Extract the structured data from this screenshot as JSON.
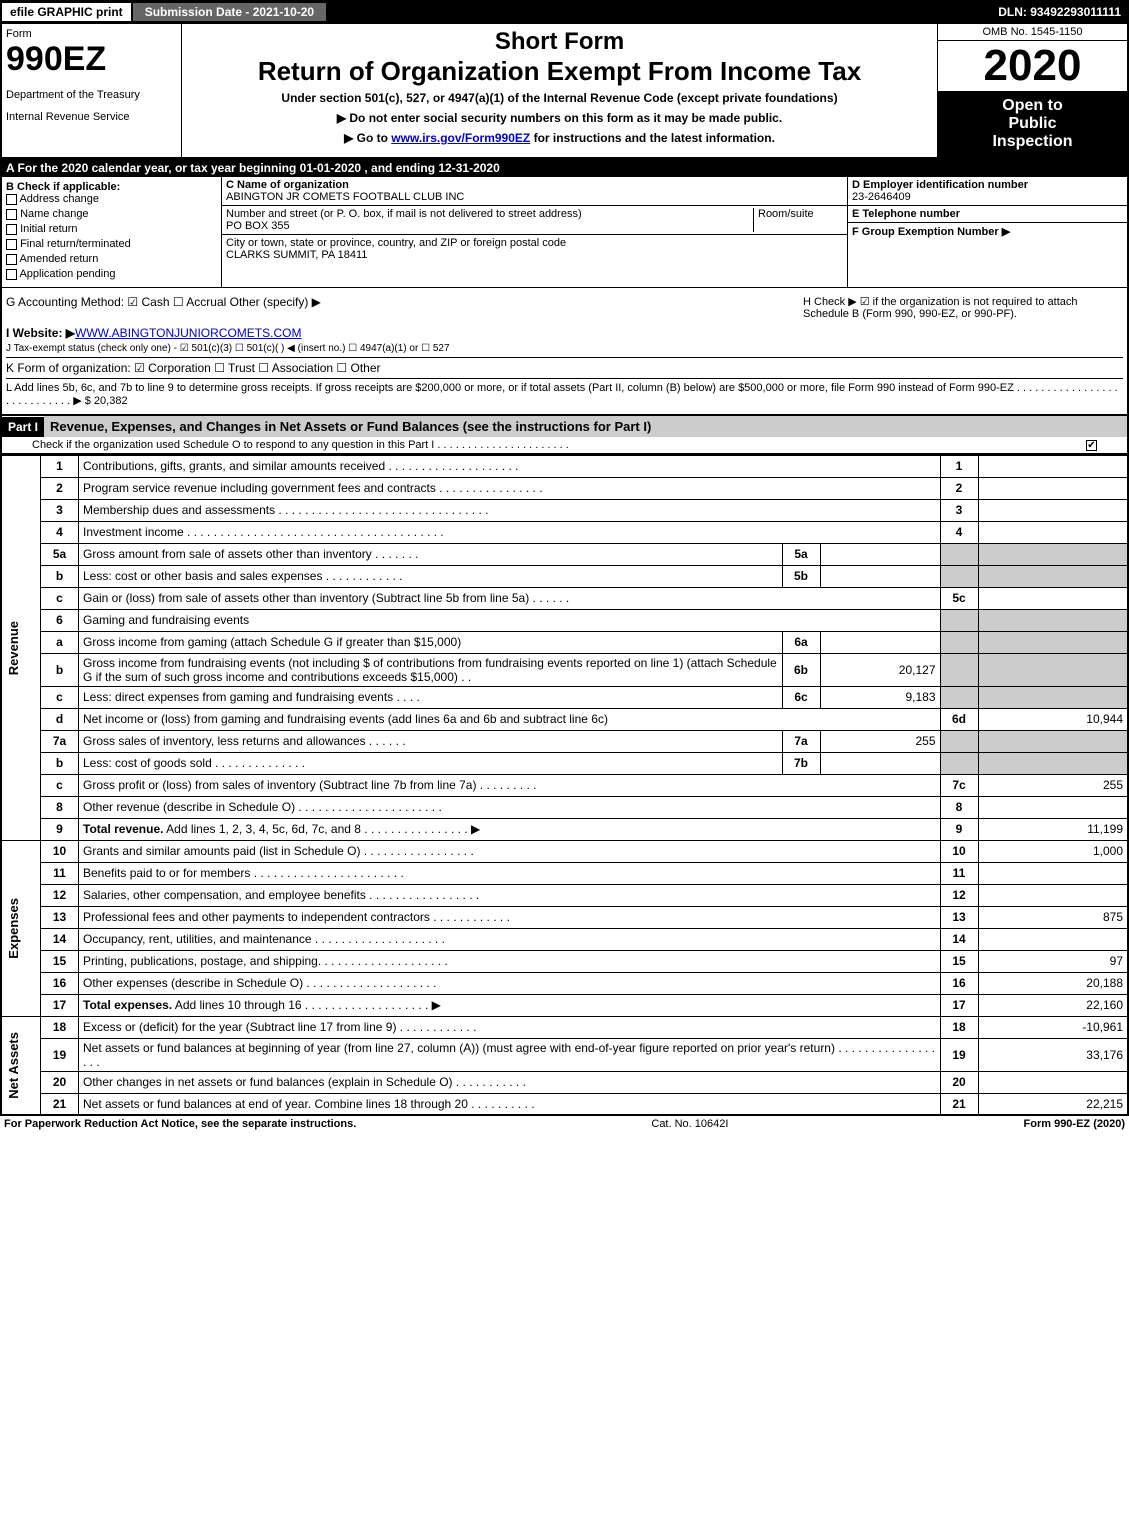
{
  "topbar": {
    "efile": "efile GRAPHIC print",
    "submission": "Submission Date - 2021-10-20",
    "dln": "DLN: 93492293011111"
  },
  "header": {
    "form_label": "Form",
    "form_num": "990EZ",
    "dept1": "Department of the Treasury",
    "dept2": "Internal Revenue Service",
    "short_form": "Short Form",
    "return_title": "Return of Organization Exempt From Income Tax",
    "subtitle": "Under section 501(c), 527, or 4947(a)(1) of the Internal Revenue Code (except private foundations)",
    "instr1": "▶ Do not enter social security numbers on this form as it may be made public.",
    "instr2_pre": "▶ Go to ",
    "instr2_link": "www.irs.gov/Form990EZ",
    "instr2_post": " for instructions and the latest information.",
    "omb": "OMB No. 1545-1150",
    "year": "2020",
    "insp1": "Open to",
    "insp2": "Public",
    "insp3": "Inspection"
  },
  "sectA": "A For the 2020 calendar year, or tax year beginning 01-01-2020 , and ending 12-31-2020",
  "colB": {
    "title": "B Check if applicable:",
    "opts": [
      "Address change",
      "Name change",
      "Initial return",
      "Final return/terminated",
      "Amended return",
      "Application pending"
    ]
  },
  "colC": {
    "c_lbl": "C Name of organization",
    "org_name": "ABINGTON JR COMETS FOOTBALL CLUB INC",
    "street_lbl": "Number and street (or P. O. box, if mail is not delivered to street address)",
    "room_lbl": "Room/suite",
    "street": "PO BOX 355",
    "city_lbl": "City or town, state or province, country, and ZIP or foreign postal code",
    "city": "CLARKS SUMMIT, PA  18411"
  },
  "colD": {
    "d_lbl": "D Employer identification number",
    "ein": "23-2646409",
    "e_lbl": "E Telephone number",
    "f_lbl": "F Group Exemption Number  ▶"
  },
  "sectG": {
    "g": "G Accounting Method:  ☑ Cash  ☐ Accrual  Other (specify) ▶",
    "h": "H  Check ▶ ☑ if the organization is not required to attach Schedule B (Form 990, 990-EZ, or 990-PF).",
    "i_pre": "I Website: ▶",
    "i_link": "WWW.ABINGTONJUNIORCOMETS.COM",
    "j": "J Tax-exempt status (check only one) - ☑ 501(c)(3) ☐ 501(c)(  ) ◀ (insert no.) ☐ 4947(a)(1) or ☐ 527",
    "k": "K Form of organization:  ☑ Corporation  ☐ Trust  ☐ Association  ☐ Other",
    "l": "L Add lines 5b, 6c, and 7b to line 9 to determine gross receipts. If gross receipts are $200,000 or more, or if total assets (Part II, column (B) below) are $500,000 or more, file Form 990 instead of Form 990-EZ . . . . . . . . . . . . . . . . . . . . . . . . . . . . ▶ $ 20,382"
  },
  "part1": {
    "hdr": "Part I",
    "title": "Revenue, Expenses, and Changes in Net Assets or Fund Balances (see the instructions for Part I)",
    "sub": "Check if the organization used Schedule O to respond to any question in this Part I . . . . . . . . . . . . . . . . . . . . . ."
  },
  "sections": {
    "revenue": "Revenue",
    "expenses": "Expenses",
    "netassets": "Net Assets"
  },
  "rows": [
    {
      "ln": "1",
      "desc": "Contributions, gifts, grants, and similar amounts received . . . . . . . . . . . . . . . . . . . .",
      "res": "1",
      "val": ""
    },
    {
      "ln": "2",
      "desc": "Program service revenue including government fees and contracts . . . . . . . . . . . . . . . .",
      "res": "2",
      "val": ""
    },
    {
      "ln": "3",
      "desc": "Membership dues and assessments . . . . . . . . . . . . . . . . . . . . . . . . . . . . . . . .",
      "res": "3",
      "val": ""
    },
    {
      "ln": "4",
      "desc": "Investment income . . . . . . . . . . . . . . . . . . . . . . . . . . . . . . . . . . . . . . .",
      "res": "4",
      "val": ""
    },
    {
      "ln": "5a",
      "desc": "Gross amount from sale of assets other than inventory . . . . . . .",
      "sub": "5a",
      "subval": "",
      "grey": true
    },
    {
      "ln": "b",
      "desc": "Less: cost or other basis and sales expenses . . . . . . . . . . . .",
      "sub": "5b",
      "subval": "",
      "grey": true
    },
    {
      "ln": "c",
      "desc": "Gain or (loss) from sale of assets other than inventory (Subtract line 5b from line 5a) . . . . . .",
      "res": "5c",
      "val": ""
    },
    {
      "ln": "6",
      "desc": "Gaming and fundraising events",
      "grey": true
    },
    {
      "ln": "a",
      "desc": "Gross income from gaming (attach Schedule G if greater than $15,000)",
      "sub": "6a",
      "subval": "",
      "grey": true
    },
    {
      "ln": "b",
      "desc": "Gross income from fundraising events (not including $                     of contributions from fundraising events reported on line 1) (attach Schedule G if the sum of such gross income and contributions exceeds $15,000)   .  .",
      "sub": "6b",
      "subval": "20,127",
      "grey": true
    },
    {
      "ln": "c",
      "desc": "Less: direct expenses from gaming and fundraising events   .  .  .  .",
      "sub": "6c",
      "subval": "9,183",
      "grey": true
    },
    {
      "ln": "d",
      "desc": "Net income or (loss) from gaming and fundraising events (add lines 6a and 6b and subtract line 6c)",
      "res": "6d",
      "val": "10,944"
    },
    {
      "ln": "7a",
      "desc": "Gross sales of inventory, less returns and allowances . . . . . .",
      "sub": "7a",
      "subval": "255",
      "grey": true
    },
    {
      "ln": "b",
      "desc": "Less: cost of goods sold    .  .  .  .  .  .  .  .  .  .  .  .  .  .",
      "sub": "7b",
      "subval": "",
      "grey": true
    },
    {
      "ln": "c",
      "desc": "Gross profit or (loss) from sales of inventory (Subtract line 7b from line 7a)  .  .  .  .  .  .  .  .  .",
      "res": "7c",
      "val": "255"
    },
    {
      "ln": "8",
      "desc": "Other revenue (describe in Schedule O) .  .  .  .  .  .  .  .  .  .  .  .  .  .  .  .  .  .  .  .  .  .",
      "res": "8",
      "val": ""
    },
    {
      "ln": "9",
      "desc": "Total revenue. Add lines 1, 2, 3, 4, 5c, 6d, 7c, and 8  .  .  .  .  .  .  .  .  .  .  .  .  .  .  .  . ▶",
      "res": "9",
      "val": "11,199",
      "bold": true
    }
  ],
  "exp_rows": [
    {
      "ln": "10",
      "desc": "Grants and similar amounts paid (list in Schedule O) .  .  .  .  .  .  .  .  .  .  .  .  .  .  .  .  .",
      "res": "10",
      "val": "1,000"
    },
    {
      "ln": "11",
      "desc": "Benefits paid to or for members    .  .  .  .  .  .  .  .  .  .  .  .  .  .  .  .  .  .  .  .  .  .  .",
      "res": "11",
      "val": ""
    },
    {
      "ln": "12",
      "desc": "Salaries, other compensation, and employee benefits .  .  .  .  .  .  .  .  .  .  .  .  .  .  .  .  .",
      "res": "12",
      "val": ""
    },
    {
      "ln": "13",
      "desc": "Professional fees and other payments to independent contractors .  .  .  .  .  .  .  .  .  .  .  .",
      "res": "13",
      "val": "875"
    },
    {
      "ln": "14",
      "desc": "Occupancy, rent, utilities, and maintenance .  .  .  .  .  .  .  .  .  .  .  .  .  .  .  .  .  .  .  .",
      "res": "14",
      "val": ""
    },
    {
      "ln": "15",
      "desc": "Printing, publications, postage, and shipping.  .  .  .  .  .  .  .  .  .  .  .  .  .  .  .  .  .  .  .",
      "res": "15",
      "val": "97"
    },
    {
      "ln": "16",
      "desc": "Other expenses (describe in Schedule O)    .  .  .  .  .  .  .  .  .  .  .  .  .  .  .  .  .  .  .  .",
      "res": "16",
      "val": "20,188"
    },
    {
      "ln": "17",
      "desc": "Total expenses. Add lines 10 through 16    .  .  .  .  .  .  .  .  .  .  .  .  .  .  .  .  .  .  . ▶",
      "res": "17",
      "val": "22,160",
      "bold": true
    }
  ],
  "net_rows": [
    {
      "ln": "18",
      "desc": "Excess or (deficit) for the year (Subtract line 17 from line 9)      .  .  .  .  .  .  .  .  .  .  .  .",
      "res": "18",
      "val": "-10,961"
    },
    {
      "ln": "19",
      "desc": "Net assets or fund balances at beginning of year (from line 27, column (A)) (must agree with end-of-year figure reported on prior year's return) .  .  .  .  .  .  .  .  .  .  .  .  .  .  .  .  .  .",
      "res": "19",
      "val": "33,176"
    },
    {
      "ln": "20",
      "desc": "Other changes in net assets or fund balances (explain in Schedule O) .  .  .  .  .  .  .  .  .  .  .",
      "res": "20",
      "val": ""
    },
    {
      "ln": "21",
      "desc": "Net assets or fund balances at end of year. Combine lines 18 through 20 .  .  .  .  .  .  .  .  .  .",
      "res": "21",
      "val": "22,215"
    }
  ],
  "footer": {
    "left": "For Paperwork Reduction Act Notice, see the separate instructions.",
    "mid": "Cat. No. 10642I",
    "right": "Form 990-EZ (2020)"
  }
}
